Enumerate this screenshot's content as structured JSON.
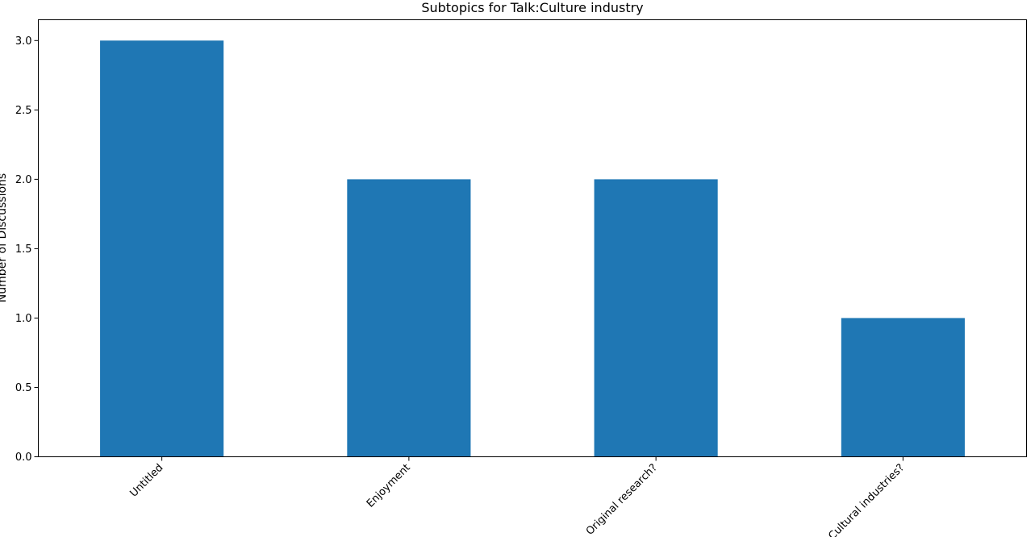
{
  "chart_data": {
    "type": "bar",
    "title": "Subtopics for Talk:Culture industry",
    "xlabel": "",
    "ylabel": "Number of Discussions",
    "categories": [
      "Untitled",
      "Enjoyment",
      "Original research?",
      "Cultural industries?"
    ],
    "values": [
      3,
      2,
      2,
      1
    ],
    "ylim": [
      0,
      3.15
    ],
    "yticks": [
      "0.0",
      "0.5",
      "1.0",
      "1.5",
      "2.0",
      "2.5",
      "3.0"
    ],
    "bar_color": "#1f77b4",
    "grid": false,
    "legend": "none"
  }
}
